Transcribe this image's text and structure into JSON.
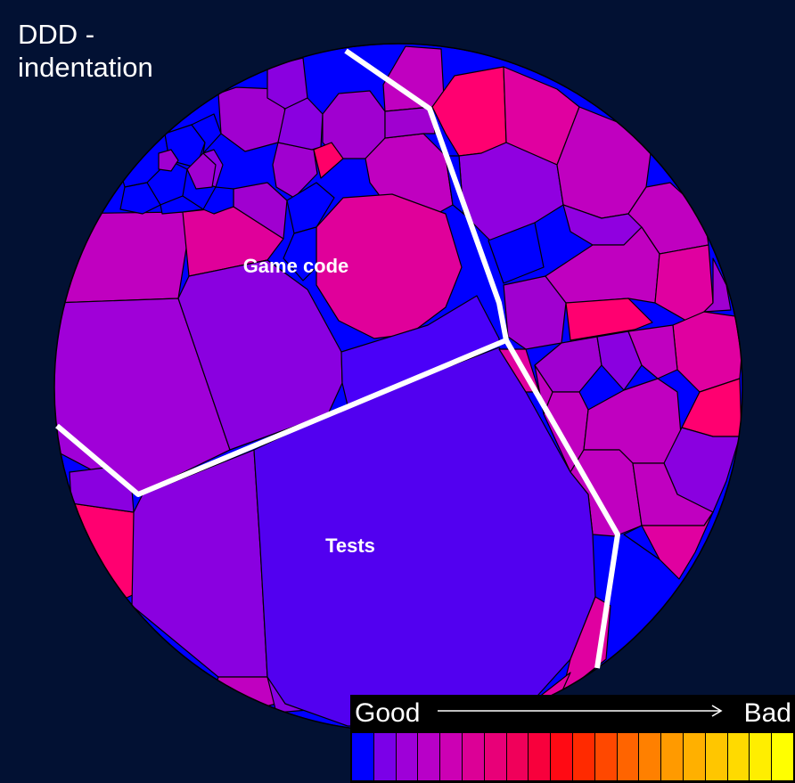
{
  "title": "DDD -\nindentation",
  "regions": [
    {
      "name": "Game code"
    },
    {
      "name": "Tests"
    }
  ],
  "legend": {
    "low_label": "Good",
    "high_label": "Bad",
    "colors": [
      "#0000ff",
      "#7b00e8",
      "#9e00d8",
      "#b800c8",
      "#cc00b4",
      "#dc0096",
      "#e80078",
      "#f0005a",
      "#f8003c",
      "#ff0a14",
      "#ff2a00",
      "#ff4800",
      "#ff6400",
      "#ff8000",
      "#ff9a00",
      "#ffb000",
      "#ffc600",
      "#ffda00",
      "#ffee00",
      "#ffff00"
    ]
  },
  "colors": {
    "background": "#021133",
    "blue": "#0000ff",
    "indigo": "#5200f0",
    "violet": "#8200e6",
    "purple": "#a200d8",
    "magenta": "#c400c4",
    "pink": "#e00090",
    "hot_pink": "#ff0070"
  }
}
